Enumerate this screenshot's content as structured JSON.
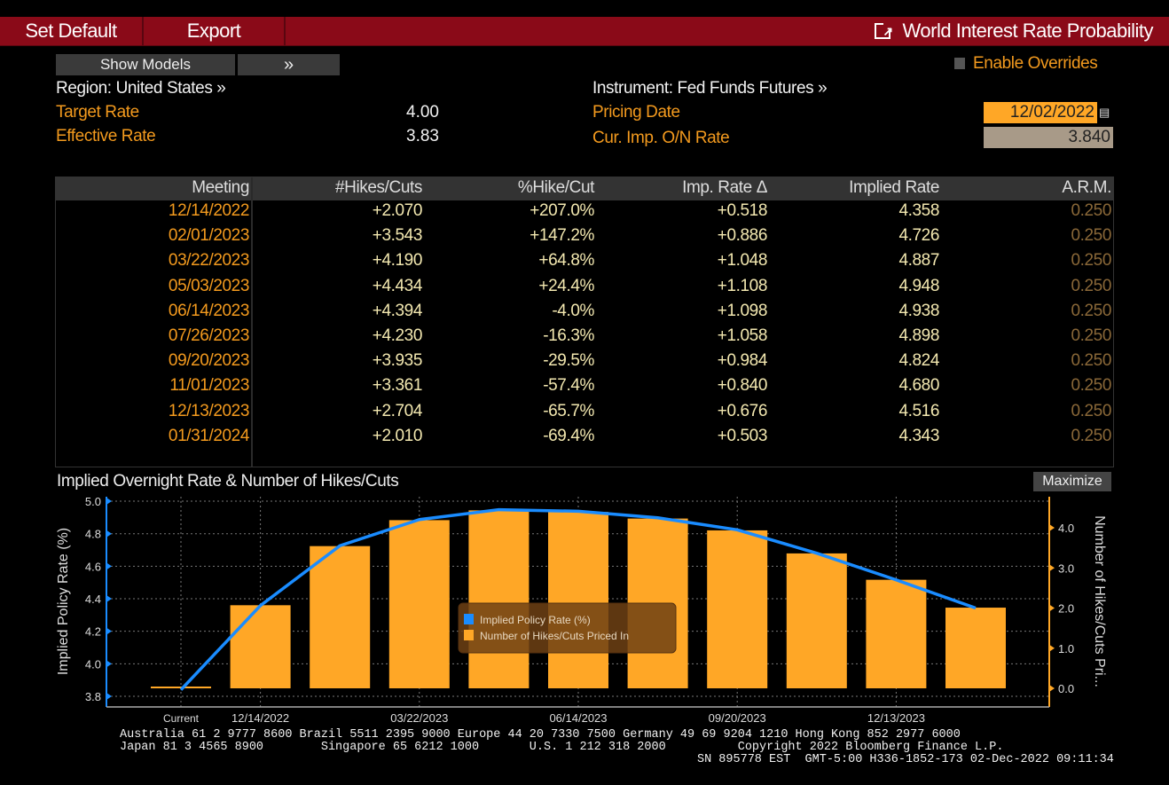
{
  "toolbar": {
    "set_default": "Set Default",
    "export": "Export",
    "title": "World Interest Rate Probability",
    "title_icon": "external-link-icon"
  },
  "controls": {
    "show_models": "Show Models",
    "expand": "»",
    "enable_overrides": "Enable Overrides",
    "enable_overrides_checked": false
  },
  "region": "Region: United States »",
  "instrument": "Instrument: Fed Funds Futures »",
  "target_rate": {
    "label": "Target Rate",
    "value": "4.00"
  },
  "effective_rate": {
    "label": "Effective Rate",
    "value": "3.83"
  },
  "pricing_date": {
    "label": "Pricing Date",
    "value": "12/02/2022"
  },
  "cur_imp_rate": {
    "label": "Cur. Imp. O/N Rate",
    "value": "3.840"
  },
  "table": {
    "columns": [
      "Meeting",
      "#Hikes/Cuts",
      "%Hike/Cut",
      "Imp. Rate Δ",
      "Implied Rate",
      "A.R.M."
    ],
    "rows": [
      [
        "12/14/2022",
        "+2.070",
        "+207.0%",
        "+0.518",
        "4.358",
        "0.250"
      ],
      [
        "02/01/2023",
        "+3.543",
        "+147.2%",
        "+0.886",
        "4.726",
        "0.250"
      ],
      [
        "03/22/2023",
        "+4.190",
        "+64.8%",
        "+1.048",
        "4.887",
        "0.250"
      ],
      [
        "05/03/2023",
        "+4.434",
        "+24.4%",
        "+1.108",
        "4.948",
        "0.250"
      ],
      [
        "06/14/2023",
        "+4.394",
        "-4.0%",
        "+1.098",
        "4.938",
        "0.250"
      ],
      [
        "07/26/2023",
        "+4.230",
        "-16.3%",
        "+1.058",
        "4.898",
        "0.250"
      ],
      [
        "09/20/2023",
        "+3.935",
        "-29.5%",
        "+0.984",
        "4.824",
        "0.250"
      ],
      [
        "11/01/2023",
        "+3.361",
        "-57.4%",
        "+0.840",
        "4.680",
        "0.250"
      ],
      [
        "12/13/2023",
        "+2.704",
        "-65.7%",
        "+0.676",
        "4.516",
        "0.250"
      ],
      [
        "01/31/2024",
        "+2.010",
        "-69.4%",
        "+0.503",
        "4.343",
        "0.250"
      ]
    ]
  },
  "chart": {
    "title": "Implied Overnight Rate & Number of Hikes/Cuts",
    "maximize": "Maximize"
  },
  "chart_data": {
    "type": "bar+line",
    "categories": [
      "Current",
      "12/14/2022",
      "02/01/2023",
      "03/22/2023",
      "05/03/2023",
      "06/14/2023",
      "07/26/2023",
      "09/20/2023",
      "11/01/2023",
      "12/13/2023",
      "01/31/2024"
    ],
    "tick_labels": [
      "Current",
      "12/14/2022",
      "03/22/2023",
      "06/14/2023",
      "09/20/2023",
      "12/13/2023"
    ],
    "series": [
      {
        "name": "Implied Policy Rate (%)",
        "type": "line",
        "axis": "left",
        "color": "#1a8cff",
        "values": [
          3.84,
          4.358,
          4.726,
          4.887,
          4.948,
          4.938,
          4.898,
          4.824,
          4.68,
          4.516,
          4.343
        ]
      },
      {
        "name": "Number of Hikes/Cuts Priced In",
        "type": "bar",
        "axis": "right",
        "color": "#ffa726",
        "values": [
          0,
          2.07,
          3.543,
          4.19,
          4.434,
          4.394,
          4.23,
          3.935,
          3.361,
          2.704,
          2.01
        ]
      }
    ],
    "ylabel_left": "Implied Policy Rate (%)",
    "ylabel_right": "Number of Hikes/Cuts Pri...",
    "ylim_left": [
      3.8,
      5.0
    ],
    "yticks_left": [
      "3.8",
      "4.0",
      "4.2",
      "4.4",
      "4.6",
      "4.8",
      "5.0"
    ],
    "yticks_right": [
      "0.0",
      "1.0",
      "2.0",
      "3.0",
      "4.0"
    ],
    "grid": true,
    "legend_placement": "center"
  },
  "footer": {
    "line1": "Australia 61 2 9777 8600 Brazil 5511 2395 9000 Europe 44 20 7330 7500 Germany 49 69 9204 1210 Hong Kong 852 2977 6000",
    "line2": "Japan 81 3 4565 8900        Singapore 65 6212 1000       U.S. 1 212 318 2000          Copyright 2022 Bloomberg Finance L.P.",
    "line3": "SN 895778 EST  GMT-5:00 H336-1852-173 02-Dec-2022 09:11:34"
  },
  "colors": {
    "title_bar": "#8a0a18",
    "label": "#f39a1e",
    "value": "#f3e8b0",
    "arm": "#8a6838",
    "rate_line": "#1a8cff",
    "bars": "#ffa726"
  }
}
